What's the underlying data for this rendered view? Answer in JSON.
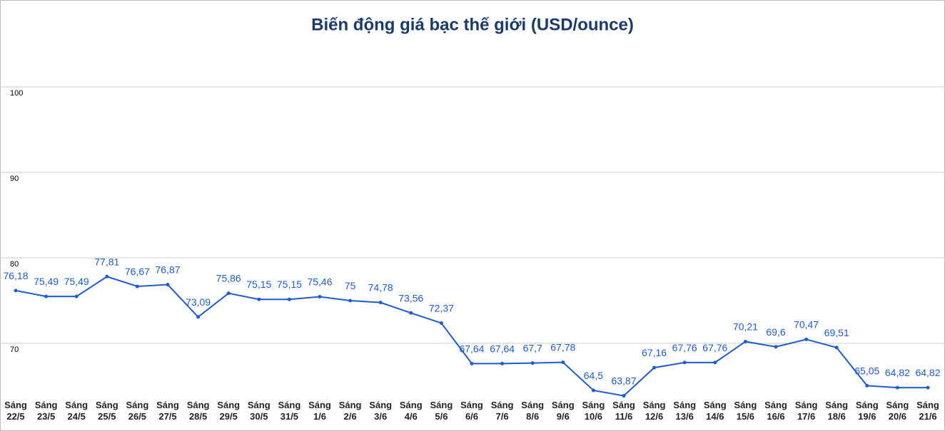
{
  "chart_data": {
    "type": "line",
    "title": "Biến động giá bạc thế giới (USD/ounce)",
    "categories": [
      "Sáng 22/5",
      "Sáng 23/5",
      "Sáng 24/5",
      "Sáng 25/5",
      "Sáng 26/5",
      "Sáng 27/5",
      "Sáng 28/5",
      "Sáng 29/5",
      "Sáng 30/5",
      "Sáng 31/5",
      "Sáng 1/6",
      "Sáng 2/6",
      "Sáng 3/6",
      "Sáng 4/6",
      "Sáng 5/6",
      "Sáng 6/6",
      "Sáng 7/6",
      "Sáng 8/6",
      "Sáng 9/6",
      "Sáng 10/6",
      "Sáng 11/6",
      "Sáng 12/6",
      "Sáng 13/6",
      "Sáng 14/6",
      "Sáng 15/6",
      "Sáng 16/6",
      "Sáng 17/6",
      "Sáng 18/6",
      "Sáng 19/6",
      "Sáng 20/6",
      "Sáng 21/6"
    ],
    "values": [
      76.18,
      75.49,
      75.49,
      77.81,
      76.67,
      76.87,
      73.09,
      75.86,
      75.15,
      75.15,
      75.46,
      75,
      74.78,
      73.56,
      72.37,
      67.64,
      67.64,
      67.7,
      67.78,
      64.5,
      63.87,
      67.16,
      67.76,
      67.76,
      70.21,
      69.6,
      70.47,
      69.51,
      65.05,
      64.82,
      64.82
    ],
    "value_labels": [
      "76,18",
      "75,49",
      "75,49",
      "77,81",
      "76,67",
      "76,87",
      "73,09",
      "75,86",
      "75,15",
      "75,15",
      "75,46",
      "75",
      "74,78",
      "73,56",
      "72,37",
      "67,64",
      "67,64",
      "67,7",
      "67,78",
      "64,5",
      "63,87",
      "67,16",
      "67,76",
      "67,76",
      "70,21",
      "69,6",
      "70,47",
      "69,51",
      "65,05",
      "64,82",
      "64,82"
    ],
    "color": "#1f5bd1",
    "ylim": [
      60,
      110
    ],
    "yticks": [
      70,
      80,
      90,
      100
    ],
    "grid": true
  }
}
